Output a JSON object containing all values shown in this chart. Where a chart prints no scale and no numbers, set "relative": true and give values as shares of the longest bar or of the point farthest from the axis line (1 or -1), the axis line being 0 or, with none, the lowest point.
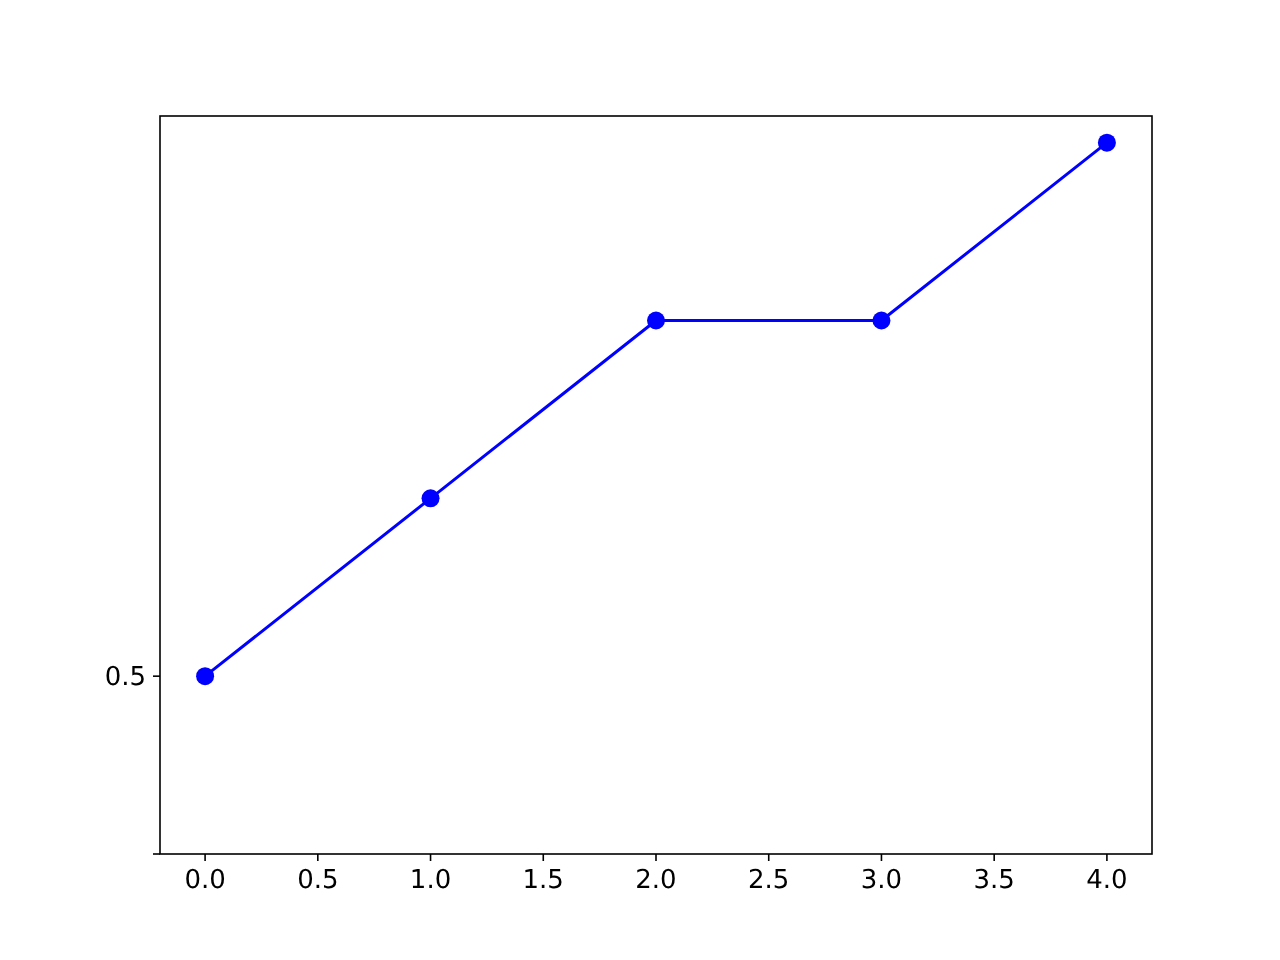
{
  "chart_data": {
    "type": "line",
    "relative": true,
    "x": [
      0,
      1,
      2,
      3,
      4
    ],
    "series": [
      {
        "color": "#0000ff",
        "values": [
          0.25,
          0.5,
          0.75,
          0.75,
          1
        ]
      }
    ],
    "xlim": [
      -0.2,
      4.2
    ],
    "xticks": [
      {
        "value": 0,
        "label": "0.0"
      },
      0.5,
      {
        "value": 1,
        "label": "1.0"
      },
      1.5,
      {
        "value": 2,
        "label": "2.0"
      },
      2.5,
      {
        "value": 3,
        "label": "3.0"
      },
      3.5,
      {
        "value": 4,
        "label": "4.0"
      }
    ],
    "annotations": [
      "0.5"
    ],
    "marker": "circle",
    "line_style": "solid",
    "grid": false
  }
}
